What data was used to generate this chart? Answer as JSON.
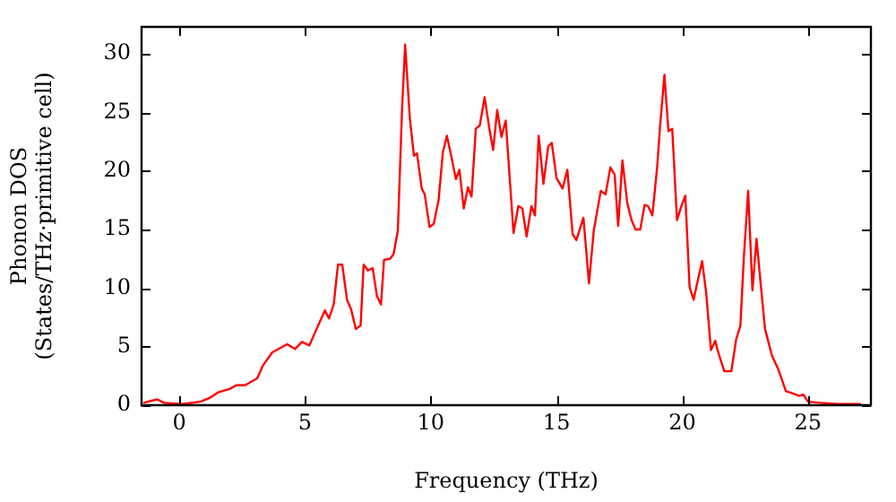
{
  "chart_data": {
    "type": "line",
    "xlabel": "Frequency (THz)",
    "ylabel": "Phonon DOS\n(States/THz·primitive cell)",
    "xlim": [
      -1.5,
      27.5
    ],
    "xticks": [
      0,
      5,
      10,
      15,
      20,
      25
    ],
    "ylim": [
      0,
      32.3
    ],
    "yticks": [
      0,
      5,
      10,
      15,
      20,
      25,
      30
    ],
    "grid": false,
    "legend": false,
    "marker": "none",
    "line_style": "solid",
    "series": [
      {
        "color": "#ff0000",
        "x": [
          -1.43,
          -0.88,
          -0.6,
          0.12,
          0.83,
          1.19,
          1.55,
          2.02,
          2.26,
          2.62,
          3.1,
          3.33,
          3.69,
          4.29,
          4.6,
          4.88,
          5.17,
          5.48,
          5.79,
          5.95,
          6.14,
          6.31,
          6.48,
          6.67,
          6.83,
          7.02,
          7.21,
          7.33,
          7.5,
          7.69,
          7.86,
          8.02,
          8.14,
          8.38,
          8.52,
          8.69,
          8.86,
          8.98,
          9.17,
          9.33,
          9.45,
          9.64,
          9.76,
          9.95,
          10.12,
          10.31,
          10.48,
          10.64,
          10.83,
          11.0,
          11.14,
          11.31,
          11.48,
          11.62,
          11.79,
          11.95,
          12.14,
          12.33,
          12.48,
          12.64,
          12.81,
          12.98,
          13.29,
          13.48,
          13.64,
          13.81,
          14.0,
          14.14,
          14.29,
          14.48,
          14.67,
          14.81,
          15.0,
          15.24,
          15.43,
          15.64,
          15.79,
          16.07,
          16.29,
          16.48,
          16.76,
          16.95,
          17.14,
          17.31,
          17.45,
          17.62,
          17.81,
          17.98,
          18.14,
          18.33,
          18.5,
          18.64,
          18.81,
          19.0,
          19.12,
          19.29,
          19.45,
          19.6,
          19.79,
          19.95,
          20.12,
          20.29,
          20.45,
          20.62,
          20.79,
          20.95,
          21.14,
          21.31,
          21.43,
          21.67,
          21.95,
          22.14,
          22.31,
          22.45,
          22.62,
          22.79,
          22.95,
          23.12,
          23.29,
          23.57,
          23.81,
          24.12,
          24.4,
          24.64,
          24.81,
          25.0,
          25.48,
          26.2,
          27.1
        ],
        "values": [
          0.2,
          0.5,
          0.2,
          0.1,
          0.3,
          0.6,
          1.1,
          1.4,
          1.7,
          1.7,
          2.3,
          3.4,
          4.5,
          5.2,
          4.8,
          5.4,
          5.1,
          6.6,
          8.1,
          7.4,
          8.6,
          12.0,
          12.0,
          9.0,
          8.2,
          6.5,
          6.8,
          12.0,
          11.5,
          11.7,
          9.3,
          8.6,
          12.4,
          12.5,
          12.9,
          14.9,
          25.4,
          30.8,
          24.4,
          21.3,
          21.5,
          18.5,
          18.0,
          15.2,
          15.5,
          17.5,
          21.6,
          23.0,
          21.1,
          19.3,
          20.1,
          16.8,
          18.6,
          17.8,
          23.6,
          23.9,
          26.3,
          23.6,
          21.8,
          25.2,
          22.9,
          24.3,
          14.7,
          17.0,
          16.8,
          14.4,
          17.0,
          16.2,
          23.0,
          18.9,
          22.1,
          22.4,
          19.4,
          18.5,
          20.1,
          14.6,
          14.1,
          16.0,
          10.4,
          14.9,
          18.3,
          18.0,
          20.3,
          19.7,
          15.3,
          20.9,
          17.3,
          15.8,
          15.0,
          15.0,
          17.1,
          17.0,
          16.2,
          20.3,
          23.9,
          28.2,
          23.4,
          23.6,
          15.8,
          16.9,
          17.9,
          10.1,
          9.0,
          10.7,
          12.3,
          9.6,
          4.7,
          5.5,
          4.5,
          2.9,
          2.9,
          5.6,
          6.8,
          12.7,
          18.3,
          9.8,
          14.2,
          10.3,
          6.5,
          4.2,
          3.1,
          1.2,
          1.0,
          0.8,
          0.9,
          0.3,
          0.2,
          0.1,
          0.1
        ]
      }
    ]
  }
}
